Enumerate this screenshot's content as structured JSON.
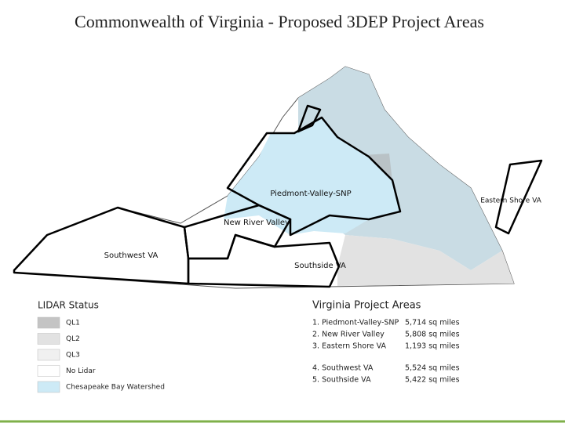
{
  "title": "Commonwealth of Virginia - Proposed 3DEP Project Areas",
  "map_labels": [
    "Piedmont-Valley-SNP",
    "New River Valley",
    "Eastern Shore VA",
    "Southwest VA",
    "Southside VA"
  ],
  "legend": {
    "title": "LIDAR Status",
    "items": [
      {
        "label": "QL1",
        "color": "#c4c4c4"
      },
      {
        "label": "QL2",
        "color": "#e2e2e2"
      },
      {
        "label": "QL3",
        "color": "#f0f0f0"
      },
      {
        "label": "No Lidar",
        "color": "#ffffff"
      },
      {
        "label": "Chesapeake Bay Watershed",
        "color": "#cdeaf6"
      }
    ]
  },
  "project_areas": {
    "title": "Virginia Project Areas",
    "rows": [
      [
        "1. Piedmont-Valley-SNP",
        "5,714 sq miles"
      ],
      [
        "2. New River Valley",
        "5,808 sq miles"
      ],
      [
        "3. Eastern Shore VA",
        "1,193 sq miles"
      ],
      [
        "4. Southwest VA",
        "5,524 sq miles"
      ],
      [
        "5. Southside VA",
        "5,422 sq miles"
      ]
    ]
  }
}
